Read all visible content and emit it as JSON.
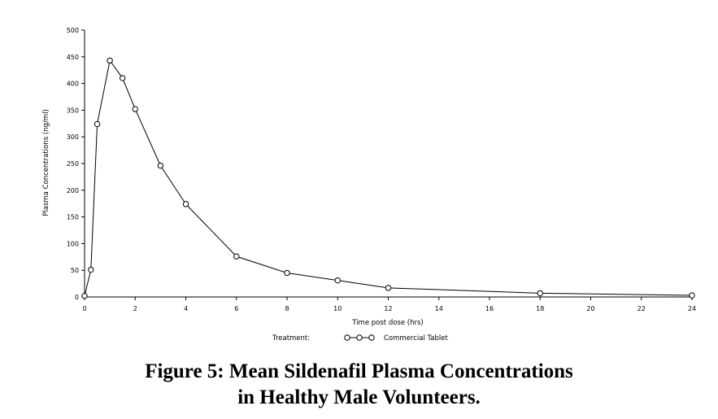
{
  "caption": {
    "line1": "Figure 5: Mean Sildenafil Plasma Concentrations",
    "line2": "in Healthy Male Volunteers."
  },
  "chart_data": {
    "type": "line",
    "title": "",
    "xlabel": "Time post dose (hrs)",
    "ylabel": "Plasma Concentrations (ng/ml)",
    "xlim": [
      0,
      24
    ],
    "ylim": [
      0,
      500
    ],
    "xticks": [
      0,
      2,
      4,
      6,
      8,
      10,
      12,
      14,
      16,
      18,
      20,
      22,
      24
    ],
    "yticks": [
      0,
      50,
      100,
      150,
      200,
      250,
      300,
      350,
      400,
      450,
      500
    ],
    "grid": false,
    "legend": {
      "title": "Treatment:",
      "placement": "bottom"
    },
    "series": [
      {
        "name": "Commercial Tablet",
        "marker": "open-circle",
        "color": "#000000",
        "x": [
          0,
          0.25,
          0.5,
          1,
          1.5,
          2,
          3,
          4,
          6,
          8,
          10,
          12,
          18,
          24
        ],
        "y": [
          2,
          51,
          324,
          443,
          410,
          352,
          246,
          174,
          76,
          45,
          31,
          17,
          7,
          3
        ]
      }
    ]
  }
}
